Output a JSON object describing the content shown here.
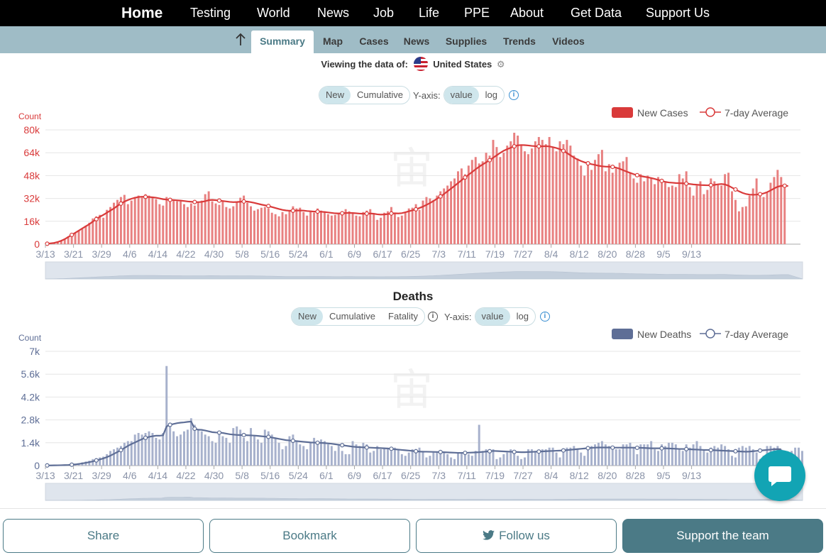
{
  "top_nav": [
    "Home",
    "Testing",
    "World",
    "News",
    "Job",
    "Life",
    "PPE",
    "About",
    "Get Data",
    "Support Us"
  ],
  "sub_nav": [
    "Summary",
    "Map",
    "Cases",
    "News",
    "Supplies",
    "Trends",
    "Videos"
  ],
  "viewing": {
    "label": "Viewing the data of:",
    "country": "United States"
  },
  "cases_controls": {
    "mode": [
      "New",
      "Cumulative"
    ],
    "yaxis_label": "Y-axis:",
    "scale": [
      "value",
      "log"
    ]
  },
  "deaths_controls": {
    "mode": [
      "New",
      "Cumulative",
      "Fatality"
    ],
    "yaxis_label": "Y-axis:",
    "scale": [
      "value",
      "log"
    ]
  },
  "footer": {
    "share": "Share",
    "bookmark": "Bookmark",
    "follow": "Follow us",
    "support": "Support the team"
  },
  "colors": {
    "cases": "#d93a3a",
    "cases_bar": "#e88080",
    "deaths": "#5e6e96",
    "deaths_bar": "#a7b1cc",
    "accent": "#4b7a86"
  },
  "chart_data": [
    {
      "type": "bar",
      "series_overlay": "line",
      "title": "",
      "ylabel": "Count",
      "ylim": [
        0,
        80000
      ],
      "yticks": [
        "0",
        "16k",
        "32k",
        "48k",
        "64k",
        "80k"
      ],
      "xticks": [
        "3/13",
        "3/21",
        "3/29",
        "4/6",
        "4/14",
        "4/22",
        "4/30",
        "5/8",
        "5/16",
        "5/24",
        "6/1",
        "6/9",
        "6/17",
        "6/25",
        "7/3",
        "7/11",
        "7/19",
        "7/27",
        "8/4",
        "8/12",
        "8/20",
        "8/28",
        "9/5",
        "9/13"
      ],
      "legend": [
        "New Cases",
        "7-day Average"
      ],
      "legend_position": "top-right",
      "start_date": "3/13",
      "series": [
        {
          "name": "New Cases",
          "values": [
            500,
            700,
            1200,
            1800,
            2500,
            4000,
            5500,
            6500,
            8000,
            9500,
            11000,
            13000,
            15000,
            18000,
            19500,
            20500,
            18500,
            24000,
            26000,
            29000,
            31000,
            33000,
            34500,
            28000,
            30500,
            33000,
            34000,
            32500,
            35000,
            34000,
            33000,
            31500,
            28000,
            27000,
            33000,
            31000,
            30500,
            30000,
            30000,
            28000,
            26000,
            28500,
            27000,
            29000,
            30500,
            35000,
            37000,
            30000,
            28500,
            27500,
            30000,
            26000,
            25000,
            26500,
            29500,
            32500,
            34000,
            29000,
            26500,
            23500,
            24500,
            25500,
            26000,
            25000,
            22000,
            21000,
            19500,
            22500,
            21000,
            23000,
            26500,
            25000,
            25500,
            22500,
            20000,
            23500,
            22000,
            25000,
            23500,
            23000,
            21000,
            20000,
            20500,
            22000,
            22500,
            24500,
            23000,
            21500,
            20000,
            19500,
            22500,
            23500,
            24500,
            21000,
            17000,
            18500,
            22000,
            23000,
            26000,
            21500,
            19000,
            20000,
            22000,
            25000,
            25500,
            28000,
            24000,
            30500,
            33000,
            32000,
            31000,
            34000,
            37000,
            39000,
            41000,
            44000,
            46000,
            51000,
            53000,
            49000,
            55000,
            59000,
            61000,
            56500,
            58000,
            64000,
            62000,
            73000,
            68000,
            61000,
            64000,
            69000,
            72000,
            78000,
            76000,
            69000,
            65000,
            63000,
            67000,
            72000,
            75000,
            73000,
            70000,
            75000,
            68000,
            65000,
            72000,
            70000,
            73000,
            69000,
            62000,
            60000,
            55000,
            48000,
            57000,
            52000,
            59000,
            63000,
            66000,
            51000,
            56000,
            50000,
            53000,
            57000,
            58000,
            61000,
            50000,
            46000,
            43000,
            49000,
            44000,
            48000,
            46000,
            42000,
            47000,
            44000,
            43000,
            40000,
            41000,
            40000,
            49000,
            46000,
            51000,
            40000,
            34000,
            41000,
            44000,
            35000,
            38000,
            46000,
            44000,
            42000,
            41000,
            49000,
            50000,
            37000,
            31000,
            23000,
            26000,
            26500,
            34000,
            39000,
            46000,
            35000,
            33000,
            36000,
            43000,
            47000,
            52000,
            47000,
            40000
          ]
        },
        {
          "name": "7-day Average",
          "values": [
            300,
            600,
            900,
            1500,
            2400,
            3500,
            5000,
            6500,
            8000,
            9500,
            11000,
            12500,
            14000,
            15800,
            17500,
            19200,
            20500,
            22000,
            23500,
            25000,
            26800,
            28400,
            29800,
            30900,
            31800,
            32500,
            33000,
            33200,
            33100,
            33000,
            32800,
            32500,
            32000,
            31500,
            31200,
            31000,
            30900,
            30700,
            30500,
            30200,
            29900,
            29700,
            29500,
            29400,
            29600,
            30100,
            30800,
            31000,
            30800,
            30500,
            30200,
            29900,
            29600,
            29400,
            29500,
            29700,
            29900,
            29800,
            29400,
            28900,
            28300,
            27700,
            27200,
            26700,
            26000,
            25300,
            24600,
            24000,
            23600,
            23400,
            23400,
            23500,
            23600,
            23500,
            23200,
            23000,
            22800,
            22800,
            22700,
            22500,
            22200,
            21900,
            21600,
            21500,
            21600,
            21800,
            21900,
            21800,
            21600,
            21400,
            21300,
            21400,
            21500,
            21300,
            20900,
            20700,
            20800,
            21100,
            21500,
            21600,
            21500,
            21700,
            22300,
            23000,
            23700,
            24400,
            25300,
            26300,
            27500,
            28800,
            30200,
            31800,
            33400,
            35100,
            37000,
            38900,
            40800,
            42800,
            44800,
            46700,
            48600,
            50500,
            52400,
            54200,
            55800,
            57300,
            58800,
            60500,
            62200,
            63900,
            65400,
            66500,
            67500,
            68500,
            69200,
            69400,
            69300,
            69100,
            68800,
            68600,
            68500,
            68500,
            68600,
            68400,
            67900,
            67300,
            66500,
            65300,
            63800,
            62200,
            60600,
            59300,
            58200,
            57300,
            56600,
            56000,
            55500,
            54900,
            54500,
            54300,
            54200,
            54100,
            53600,
            52800,
            51800,
            50800,
            49900,
            49000,
            48300,
            47700,
            47200,
            46800,
            46300,
            45700,
            45000,
            44300,
            43600,
            43200,
            43000,
            42800,
            42700,
            42600,
            42400,
            42100,
            41800,
            41600,
            41400,
            41300,
            41200,
            41300,
            41500,
            41900,
            42100,
            41800,
            40900,
            39600,
            38300,
            37000,
            35900,
            35100,
            34700,
            34600,
            34700,
            35000,
            35500,
            36400,
            37600,
            39000,
            40200,
            40800,
            40900,
            40700
          ]
        }
      ]
    },
    {
      "type": "bar",
      "series_overlay": "line",
      "title": "Deaths",
      "ylabel": "Count",
      "ylim": [
        0,
        7000
      ],
      "yticks": [
        "0",
        "1.4k",
        "2.8k",
        "4.2k",
        "5.6k",
        "7k"
      ],
      "xticks": [
        "3/13",
        "3/21",
        "3/29",
        "4/6",
        "4/14",
        "4/22",
        "4/30",
        "5/8",
        "5/16",
        "5/24",
        "6/1",
        "6/9",
        "6/17",
        "6/25",
        "7/3",
        "7/11",
        "7/19",
        "7/27",
        "8/4",
        "8/12",
        "8/20",
        "8/28",
        "9/5",
        "9/13"
      ],
      "legend": [
        "New Deaths",
        "7-day Average"
      ],
      "legend_position": "top-right",
      "start_date": "3/13",
      "series": [
        {
          "name": "New Deaths",
          "values": [
            10,
            15,
            20,
            25,
            30,
            40,
            60,
            80,
            100,
            150,
            200,
            250,
            300,
            400,
            450,
            500,
            550,
            700,
            900,
            1000,
            1100,
            1200,
            1400,
            1500,
            1500,
            1900,
            2000,
            1900,
            2000,
            2100,
            2000,
            1700,
            1600,
            2000,
            6100,
            2500,
            2100,
            1800,
            1900,
            2100,
            2200,
            2900,
            2500,
            2200,
            2100,
            1900,
            1800,
            1500,
            1400,
            2100,
            1800,
            1700,
            1400,
            2300,
            2400,
            2200,
            1700,
            1500,
            2300,
            1800,
            1600,
            1400,
            2200,
            2100,
            1900,
            1700,
            1400,
            1000,
            1200,
            1800,
            1900,
            1500,
            1300,
            1200,
            1000,
            1400,
            1700,
            1300,
            1600,
            1500,
            1300,
            1200,
            900,
            1300,
            900,
            700,
            700,
            1500,
            1300,
            1200,
            1400,
            1300,
            800,
            900,
            1200,
            1000,
            1100,
            1000,
            900,
            1100,
            1000,
            700,
            600,
            800,
            1000,
            900,
            1100,
            900,
            500,
            600,
            800,
            800,
            900,
            800,
            700,
            500,
            400,
            800,
            800,
            700,
            700,
            600,
            900,
            2500,
            900,
            1000,
            1000,
            1000,
            400,
            500,
            700,
            800,
            1000,
            900,
            600,
            400,
            500,
            1000,
            1000,
            900,
            800,
            1000,
            1000,
            1100,
            1100,
            800,
            500,
            900,
            1100,
            1100,
            1200,
            1000,
            800,
            600,
            1100,
            1200,
            1300,
            1400,
            1500,
            1300,
            1200,
            1100,
            1000,
            1000,
            1300,
            1300,
            1400,
            1100,
            700,
            1300,
            1300,
            1300,
            1500,
            1000,
            900,
            1300,
            1200,
            1400,
            1400,
            1300,
            1000,
            900,
            1300,
            1100,
            1300,
            1500,
            1200,
            1000,
            800,
            1100,
            1200,
            1100,
            1300,
            1200,
            1000,
            600,
            500,
            1100,
            1200,
            1100,
            1200,
            1000,
            800,
            400,
            600,
            1200,
            1200,
            1100,
            1200,
            1000,
            700,
            400,
            900,
            1100,
            1100,
            900
          ]
        },
        {
          "name": "7-day Average",
          "values": [
            10,
            12,
            15,
            20,
            25,
            32,
            40,
            55,
            75,
            100,
            135,
            170,
            210,
            260,
            320,
            380,
            440,
            520,
            610,
            720,
            830,
            950,
            1080,
            1210,
            1320,
            1420,
            1520,
            1620,
            1700,
            1760,
            1800,
            1830,
            1830,
            1860,
            2400,
            2500,
            2550,
            2600,
            2630,
            2650,
            2680,
            2700,
            2260,
            2200,
            2190,
            2150,
            2100,
            2050,
            2030,
            2020,
            2000,
            1960,
            1920,
            1900,
            1880,
            1870,
            1870,
            1860,
            1850,
            1840,
            1820,
            1800,
            1780,
            1760,
            1720,
            1680,
            1640,
            1600,
            1560,
            1540,
            1520,
            1500,
            1480,
            1460,
            1440,
            1420,
            1410,
            1400,
            1390,
            1380,
            1360,
            1340,
            1310,
            1280,
            1250,
            1220,
            1190,
            1160,
            1140,
            1130,
            1120,
            1110,
            1100,
            1090,
            1080,
            1070,
            1060,
            1050,
            1030,
            1000,
            980,
            960,
            940,
            920,
            900,
            880,
            860,
            850,
            850,
            845,
            840,
            835,
            830,
            820,
            810,
            800,
            790,
            780,
            780,
            780,
            790,
            800,
            810,
            820,
            840,
            860,
            880,
            900,
            890,
            880,
            870,
            860,
            850,
            840,
            830,
            820,
            820,
            830,
            840,
            850,
            860,
            870,
            880,
            890,
            900,
            910,
            920,
            930,
            950,
            970,
            990,
            1010,
            1030,
            1050,
            1070,
            1090,
            1100,
            1110,
            1110,
            1110,
            1110,
            1100,
            1100,
            1100,
            1100,
            1100,
            1100,
            1100,
            1090,
            1090,
            1080,
            1070,
            1060,
            1060,
            1060,
            1060,
            1060,
            1050,
            1040,
            1030,
            1020,
            1020,
            1010,
            1000,
            990,
            980,
            970,
            960,
            960,
            950,
            940,
            930,
            920,
            910,
            900,
            890,
            880,
            870,
            860,
            850,
            860,
            880,
            900,
            920,
            940,
            960,
            980,
            1000,
            1010,
            1000
          ]
        }
      ]
    }
  ]
}
